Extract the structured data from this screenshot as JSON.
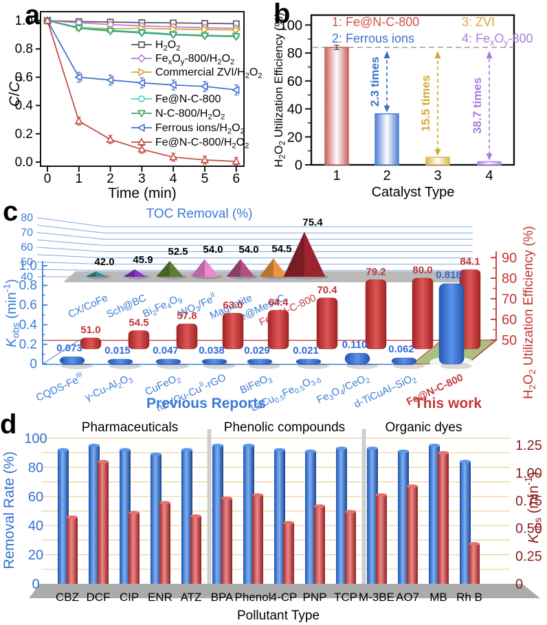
{
  "figure": {
    "panel_labels": {
      "a": "a",
      "b": "b",
      "c": "c",
      "d": "d"
    }
  },
  "chart_data": [
    {
      "id": "a",
      "type": "line",
      "xlabel": "Time (min)",
      "ylabel": "*C*/*C*_0_",
      "x": [
        0,
        1,
        2,
        3,
        4,
        5,
        6
      ],
      "xticks": [
        "0",
        "1",
        "2",
        "3",
        "4",
        "5",
        "6"
      ],
      "yticks": [
        "0.0",
        "0.2",
        "0.4",
        "0.6",
        "0.8",
        "1.0"
      ],
      "ylim": [
        0,
        1.0
      ],
      "series": [
        {
          "name": "H_2_O_2_",
          "color": "#4f4f4f",
          "marker": "square",
          "err": 0.008,
          "values": [
            1.0,
            0.993,
            0.99,
            0.986,
            0.984,
            0.981,
            0.978
          ]
        },
        {
          "name": "Fe_x_O_y_-800/H_2_O_2_",
          "color": "#b678d8",
          "marker": "diamond",
          "err": 0.008,
          "values": [
            1.0,
            0.985,
            0.972,
            0.963,
            0.956,
            0.95,
            0.945
          ]
        },
        {
          "name": "Commercial ZVI/H_2_O_2_",
          "color": "#d4a32c",
          "marker": "triangle-right",
          "err": 0.015,
          "values": [
            1.0,
            0.952,
            0.942,
            0.946,
            0.94,
            0.937,
            0.934
          ]
        },
        {
          "name": "Fe@N-C-800",
          "color": "#48cfc6",
          "marker": "circle",
          "err": 0.012,
          "values": [
            1.0,
            0.952,
            0.932,
            0.92,
            0.905,
            0.897,
            0.892
          ]
        },
        {
          "name": "N-C-800/H_2_O_2_",
          "color": "#3f9e63",
          "marker": "triangle-down",
          "err": 0.012,
          "values": [
            1.0,
            0.946,
            0.926,
            0.913,
            0.9,
            0.892,
            0.887
          ]
        },
        {
          "name": "Ferrous ions/H_2_O_2_",
          "color": "#3a6fd0",
          "marker": "triangle-left",
          "err": 0.035,
          "values": [
            1.0,
            0.6,
            0.58,
            0.56,
            0.545,
            0.535,
            0.51
          ]
        },
        {
          "name": "Fe@N-C-800/H_2_O_2_",
          "color": "#c2463f",
          "marker": "triangle-up",
          "err": 0.028,
          "values": [
            1.0,
            0.29,
            0.16,
            0.09,
            0.035,
            0.015,
            0.005
          ]
        }
      ]
    },
    {
      "id": "b",
      "type": "bar",
      "xlabel": "Catalyst Type",
      "ylabel": "H_2_O_2_ Utilization Efficiency (%)",
      "categories": [
        "1",
        "2",
        "3",
        "4"
      ],
      "values": [
        84,
        36.5,
        5.4,
        2.2
      ],
      "bar_colors": [
        "#c9605c",
        "#4f7fd4",
        "#ddb44e",
        "#ad85e2"
      ],
      "yticks": [
        0,
        20,
        40,
        60,
        80,
        100
      ],
      "ylim": [
        0,
        100
      ],
      "ref_line": 84,
      "legend": [
        {
          "label": "1: Fe@N-C-800",
          "color": "#d0504a"
        },
        {
          "label": "2: Ferrous ions",
          "color": "#3a6fd0"
        },
        {
          "label": "3: ZVI",
          "color": "#d9a832"
        },
        {
          "label": "4: Fe_x_O_y_-800",
          "color": "#a87de0"
        }
      ],
      "arrows": [
        {
          "cat": 1,
          "label": "2.3 times",
          "color": "#3a6fd0"
        },
        {
          "cat": 2,
          "label": "15.5 times",
          "color": "#d9a832"
        },
        {
          "cat": 3,
          "label": "38.7 times",
          "color": "#a87de0"
        }
      ]
    },
    {
      "id": "c",
      "type": "3d-bar",
      "left_axis": {
        "label": "*K*_obs_ (min^-1^)",
        "ticks": [
          "0",
          "0.2",
          "0.4",
          "0.6",
          "0.8",
          "1.0"
        ],
        "color": "#3a7bd5"
      },
      "right_axis": {
        "label": "H_2_O_2_ Utilization Efficiency (%)",
        "ticks": [
          50,
          60,
          70,
          80,
          90
        ],
        "color": "#c23333"
      },
      "categories": [
        {
          "label": "CQDS-Fe^III^"
        },
        {
          "label": "γ-Cu-Al_2_O_3_"
        },
        {
          "label": "CuFeO_2_"
        },
        {
          "label": "nZVCu-Cu^II^-rGO"
        },
        {
          "label": "BiFeO_3_"
        },
        {
          "label": "LaCu_0.5_Fe_0.5_O_3-δ_"
        },
        {
          "label": "Fe_3_O_4_/CeO_2_"
        },
        {
          "label": "d-TiCuAl–SiO_2_"
        },
        {
          "label": "Fe@N-C-800",
          "highlight": true
        }
      ],
      "kobs": [
        "0.073",
        "0.015",
        "0.047",
        "0.038",
        "0.029",
        "0.021",
        "0.110",
        "0.062",
        "0.818"
      ],
      "efficiency": [
        "51.0",
        "54.5",
        "57.8",
        "63.0",
        "64.4",
        "70.4",
        "79.2",
        "80.0",
        "84.1"
      ],
      "group_labels": {
        "previous": "Previous Reports",
        "this_work": "This work"
      },
      "toc_inset": {
        "title": "TOC Removal (%)",
        "ticks": [
          "80",
          "70",
          "60",
          "50",
          "40"
        ],
        "items": [
          {
            "label": "CX/CoFe",
            "value": 42.0,
            "display": "42.0",
            "color": "#2f9090"
          },
          {
            "label": "Sch@BC",
            "value": 45.9,
            "display": "45.9",
            "color": "#8f2fd0"
          },
          {
            "label": "Bi_2_Fe_4_O_9_",
            "value": 52.5,
            "display": "52.5",
            "color": "#5a7f2f"
          },
          {
            "label": "WO_3_/Fe^II^",
            "value": 54.0,
            "display": "54.0",
            "color": "#f085d0"
          },
          {
            "label": "Magnetite",
            "value": 54.0,
            "display": "54.0",
            "color": "#b34f86"
          },
          {
            "label": "Fe@MesoC",
            "value": 54.5,
            "display": "54.5",
            "color": "#ee9440"
          },
          {
            "label": "Fe@N-C-800",
            "value": 75.4,
            "display": "75.4",
            "color": "#9c2430",
            "highlight": true
          }
        ]
      }
    },
    {
      "id": "d",
      "type": "grouped-bar",
      "xlabel": "Pollutant Type",
      "left_axis": {
        "label": "Removal Rate (%)",
        "ticks": [
          "0",
          "20",
          "40",
          "60",
          "80",
          "100"
        ],
        "color": "#2f6fd0"
      },
      "right_axis": {
        "label": "*K*_obs_ (min^-1^)",
        "ticks": [
          "0",
          "0.25",
          "0.50",
          "0.75",
          "1.00",
          "1.25"
        ],
        "color": "#8b2020"
      },
      "ylim_left": [
        0,
        100
      ],
      "ylim_right": [
        0,
        1.25
      ],
      "bar_colors": {
        "removal": "#2464c8",
        "kobs": "#cf4a4a"
      },
      "groups": [
        {
          "title": "Pharmaceuticals",
          "categories": [
            "CBZ",
            "DCF",
            "CIP",
            "ENR",
            "ATZ"
          ],
          "removal": [
            92,
            95,
            92,
            89,
            92
          ],
          "kobs": [
            0.6,
            1.1,
            0.64,
            0.73,
            0.61
          ]
        },
        {
          "title": "Phenolic compounds",
          "categories": [
            "BPA",
            "Phenol",
            "4-CP",
            "PNP",
            "TCP"
          ],
          "removal": [
            95,
            95,
            92,
            91,
            93
          ],
          "kobs": [
            0.77,
            0.8,
            0.55,
            0.7,
            0.65
          ]
        },
        {
          "title": "Organic dyes",
          "categories": [
            "M-3BE",
            "AO7",
            "MB",
            "Rh B"
          ],
          "removal": [
            93,
            91,
            95,
            84
          ],
          "kobs": [
            0.8,
            0.88,
            1.18,
            0.36
          ]
        }
      ]
    }
  ]
}
